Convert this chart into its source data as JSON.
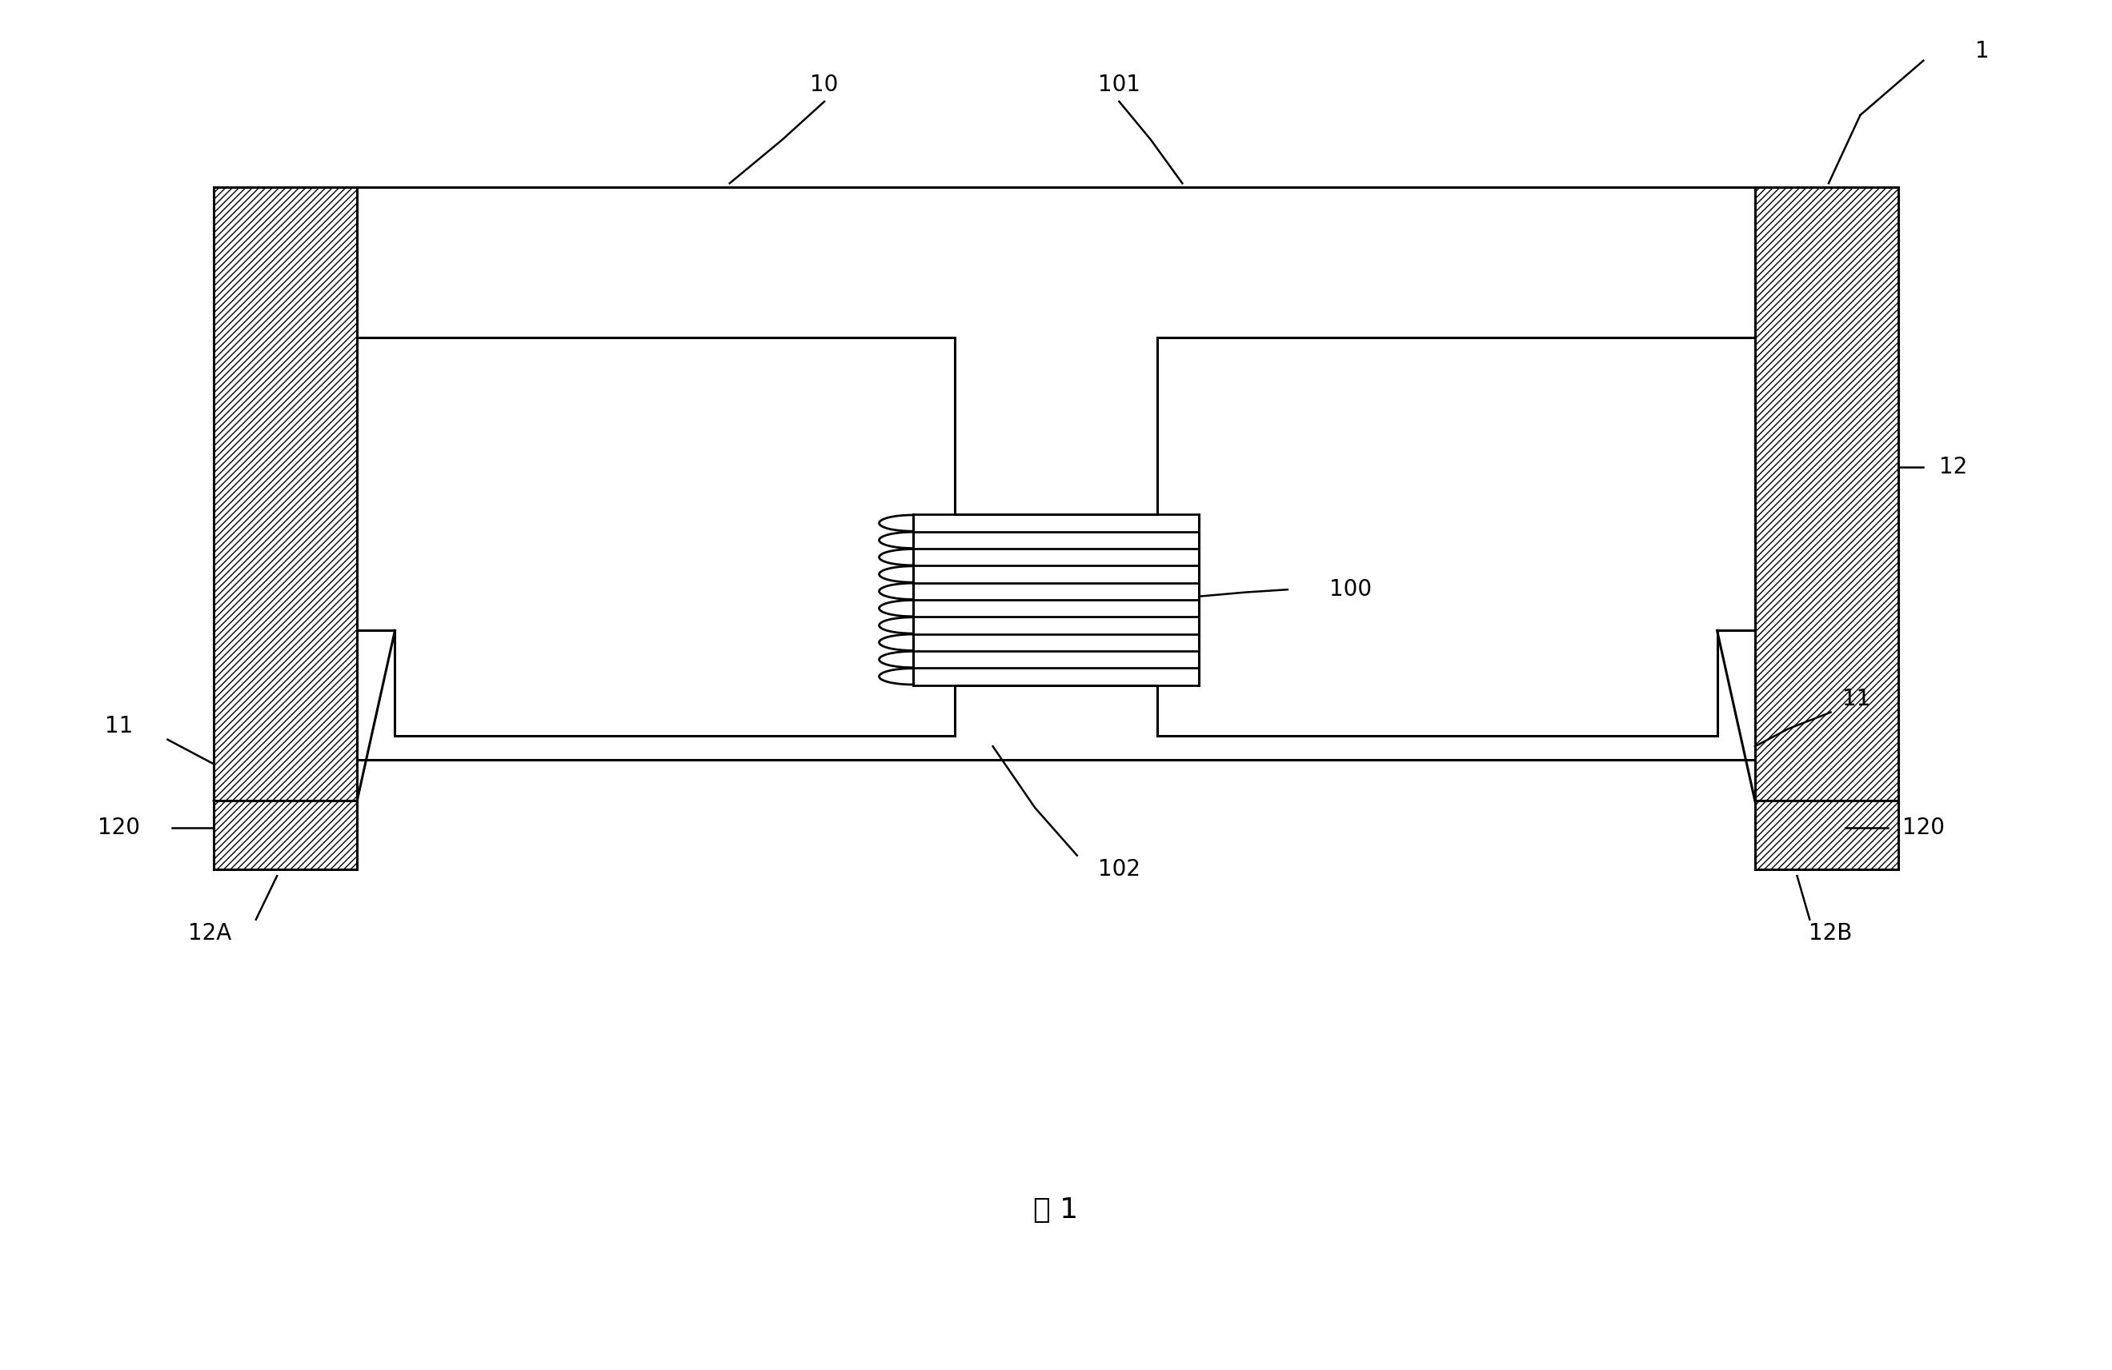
{
  "bg_color": "#ffffff",
  "line_color": "#000000",
  "fig_width": 26.39,
  "fig_height": 17.13,
  "title": "图 1",
  "lw_main": 2.2,
  "lw_leader": 1.8,
  "label_fs": 20
}
